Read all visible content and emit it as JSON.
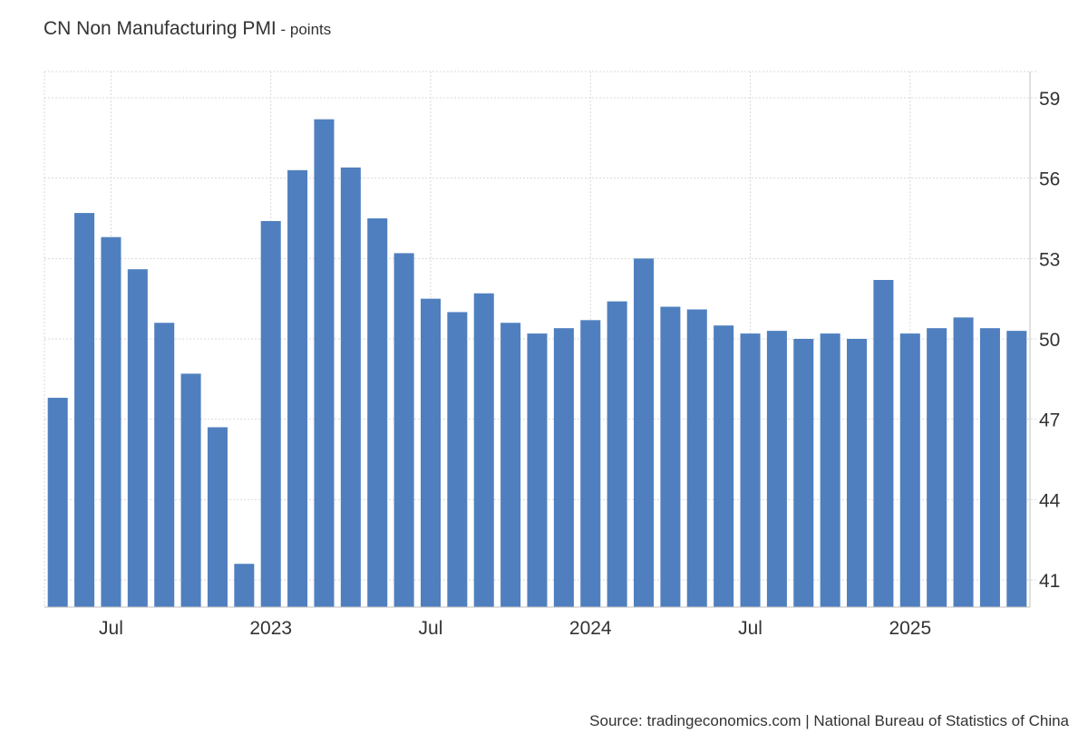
{
  "header": {
    "title": "CN Non Manufacturing PMI",
    "unit_separator": " - ",
    "unit": "points"
  },
  "footer": {
    "source": "Source: tradingeconomics.com | National Bureau of Statistics of China"
  },
  "colors": {
    "bar": "#4f7fbf",
    "grid": "#d9d9d9",
    "axis_text": "#333333"
  },
  "chart_data": {
    "type": "bar",
    "title": "CN Non Manufacturing PMI",
    "ylabel": "points",
    "xlabel": "",
    "ylim": [
      40,
      60
    ],
    "yticks": [
      41,
      44,
      47,
      50,
      53,
      56,
      59
    ],
    "y_axis_side": "right",
    "grid": true,
    "categories": [
      "2022-05",
      "2022-06",
      "2022-07",
      "2022-08",
      "2022-09",
      "2022-10",
      "2022-11",
      "2022-12",
      "2023-01",
      "2023-02",
      "2023-03",
      "2023-04",
      "2023-05",
      "2023-06",
      "2023-07",
      "2023-08",
      "2023-09",
      "2023-10",
      "2023-11",
      "2023-12",
      "2024-01",
      "2024-02",
      "2024-03",
      "2024-04",
      "2024-05",
      "2024-06",
      "2024-07",
      "2024-08",
      "2024-09",
      "2024-10",
      "2024-11",
      "2024-12",
      "2025-01",
      "2025-02",
      "2025-03",
      "2025-04",
      "2025-05"
    ],
    "values": [
      47.8,
      54.7,
      53.8,
      52.6,
      50.6,
      48.7,
      46.7,
      41.6,
      54.4,
      56.3,
      58.2,
      56.4,
      54.5,
      53.2,
      51.5,
      51.0,
      51.7,
      50.6,
      50.2,
      50.4,
      50.7,
      51.4,
      53.0,
      51.2,
      51.1,
      50.5,
      50.2,
      50.3,
      50.0,
      50.2,
      50.0,
      52.2,
      50.2,
      50.4,
      50.8,
      50.4,
      50.3
    ],
    "xticks": [
      {
        "index": 2,
        "label": "Jul"
      },
      {
        "index": 8,
        "label": "2023"
      },
      {
        "index": 14,
        "label": "Jul"
      },
      {
        "index": 20,
        "label": "2024"
      },
      {
        "index": 26,
        "label": "Jul"
      },
      {
        "index": 32,
        "label": "2025"
      }
    ]
  }
}
